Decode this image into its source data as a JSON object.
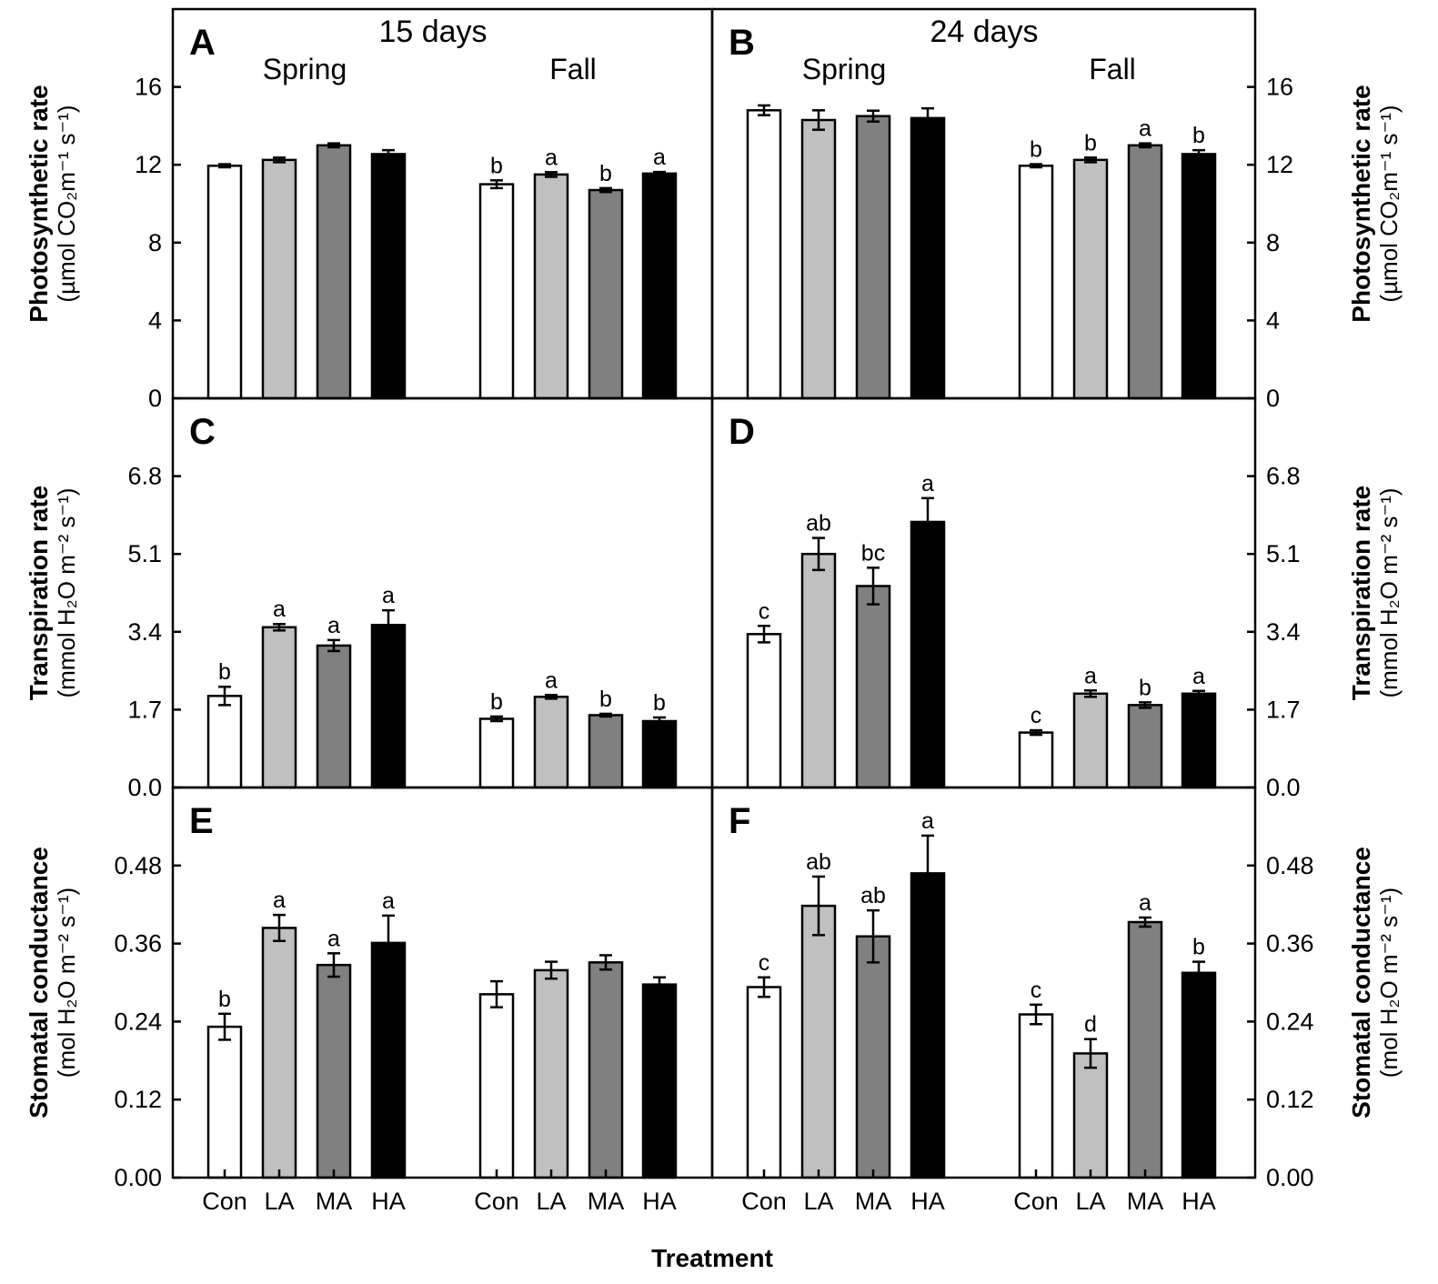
{
  "chart_data": {
    "type": "bar",
    "x_axis_label": "Treatment",
    "categories": [
      "Con",
      "LA",
      "MA",
      "HA"
    ],
    "seasons": [
      "Spring",
      "Fall"
    ],
    "column_titles": [
      "15 days",
      "24 days"
    ],
    "colors": {
      "Con": "#ffffff",
      "LA": "#c0c0c0",
      "MA": "#808080",
      "HA": "#000000"
    },
    "rows": [
      {
        "key": "photo",
        "ylabel": "Photosynthetic rate",
        "unit": "(µmol CO₂m⁻¹ s⁻¹)",
        "ylim": [
          0,
          20
        ],
        "ticks": [
          "0",
          "4",
          "8",
          "12",
          "16"
        ],
        "tick_values": [
          0,
          4,
          8,
          12,
          16
        ]
      },
      {
        "key": "trans",
        "ylabel": "Transpiration rate",
        "unit": "(mmol H₂O m⁻² s⁻¹)",
        "ylim": [
          0,
          8.5
        ],
        "ticks": [
          "0.0",
          "1.7",
          "3.4",
          "5.1",
          "6.8"
        ],
        "tick_values": [
          0,
          1.7,
          3.4,
          5.1,
          6.8
        ]
      },
      {
        "key": "stom",
        "ylabel": "Stomatal conductance",
        "unit": "(mol H₂O m⁻² s⁻¹)",
        "ylim": [
          0,
          0.6
        ],
        "ticks": [
          "0.00",
          "0.12",
          "0.24",
          "0.36",
          "0.48"
        ],
        "tick_values": [
          0,
          0.12,
          0.24,
          0.36,
          0.48
        ]
      }
    ],
    "panels": [
      {
        "letter": "A",
        "row": 0,
        "col": 0,
        "spring": {
          "values": [
            11.95,
            12.25,
            13.0,
            12.55
          ],
          "errors": [
            0.08,
            0.12,
            0.1,
            0.2
          ],
          "letters": [
            "",
            "",
            "",
            ""
          ]
        },
        "fall": {
          "values": [
            11.0,
            11.5,
            10.7,
            11.55
          ],
          "errors": [
            0.2,
            0.12,
            0.1,
            0.08
          ],
          "letters": [
            "b",
            "a",
            "b",
            "a"
          ]
        }
      },
      {
        "letter": "B",
        "row": 0,
        "col": 1,
        "spring": {
          "values": [
            14.8,
            14.3,
            14.5,
            14.4
          ],
          "errors": [
            0.25,
            0.5,
            0.28,
            0.5
          ],
          "letters": [
            "",
            "",
            "",
            ""
          ]
        },
        "fall": {
          "values": [
            11.95,
            12.25,
            13.0,
            12.55
          ],
          "errors": [
            0.08,
            0.12,
            0.1,
            0.2
          ],
          "letters": [
            "b",
            "b",
            "a",
            "b"
          ]
        }
      },
      {
        "letter": "C",
        "row": 1,
        "col": 0,
        "spring": {
          "values": [
            2.0,
            3.5,
            3.1,
            3.55
          ],
          "errors": [
            0.2,
            0.07,
            0.12,
            0.32
          ],
          "letters": [
            "b",
            "a",
            "a",
            "a"
          ]
        },
        "fall": {
          "values": [
            1.5,
            1.98,
            1.58,
            1.45
          ],
          "errors": [
            0.05,
            0.04,
            0.03,
            0.08
          ],
          "letters": [
            "b",
            "a",
            "b",
            "b"
          ]
        }
      },
      {
        "letter": "D",
        "row": 1,
        "col": 1,
        "spring": {
          "values": [
            3.35,
            5.1,
            4.4,
            5.8
          ],
          "errors": [
            0.18,
            0.35,
            0.4,
            0.52
          ],
          "letters": [
            "c",
            "ab",
            "bc",
            "a"
          ]
        },
        "fall": {
          "values": [
            1.2,
            2.05,
            1.8,
            2.05
          ],
          "errors": [
            0.05,
            0.07,
            0.06,
            0.06
          ],
          "letters": [
            "c",
            "a",
            "b",
            "a"
          ]
        }
      },
      {
        "letter": "E",
        "row": 2,
        "col": 0,
        "spring": {
          "values": [
            0.232,
            0.384,
            0.327,
            0.361
          ],
          "errors": [
            0.02,
            0.02,
            0.018,
            0.042
          ],
          "letters": [
            "b",
            "a",
            "a",
            "a"
          ]
        },
        "fall": {
          "values": [
            0.282,
            0.319,
            0.331,
            0.297
          ],
          "errors": [
            0.02,
            0.013,
            0.011,
            0.011
          ],
          "letters": [
            "",
            "",
            "",
            ""
          ]
        }
      },
      {
        "letter": "F",
        "row": 2,
        "col": 1,
        "spring": {
          "values": [
            0.293,
            0.418,
            0.371,
            0.468
          ],
          "errors": [
            0.015,
            0.045,
            0.04,
            0.058
          ],
          "letters": [
            "c",
            "ab",
            "ab",
            "a"
          ]
        },
        "fall": {
          "values": [
            0.251,
            0.191,
            0.393,
            0.315
          ],
          "errors": [
            0.015,
            0.022,
            0.007,
            0.017
          ],
          "letters": [
            "c",
            "d",
            "a",
            "b"
          ]
        }
      }
    ]
  }
}
